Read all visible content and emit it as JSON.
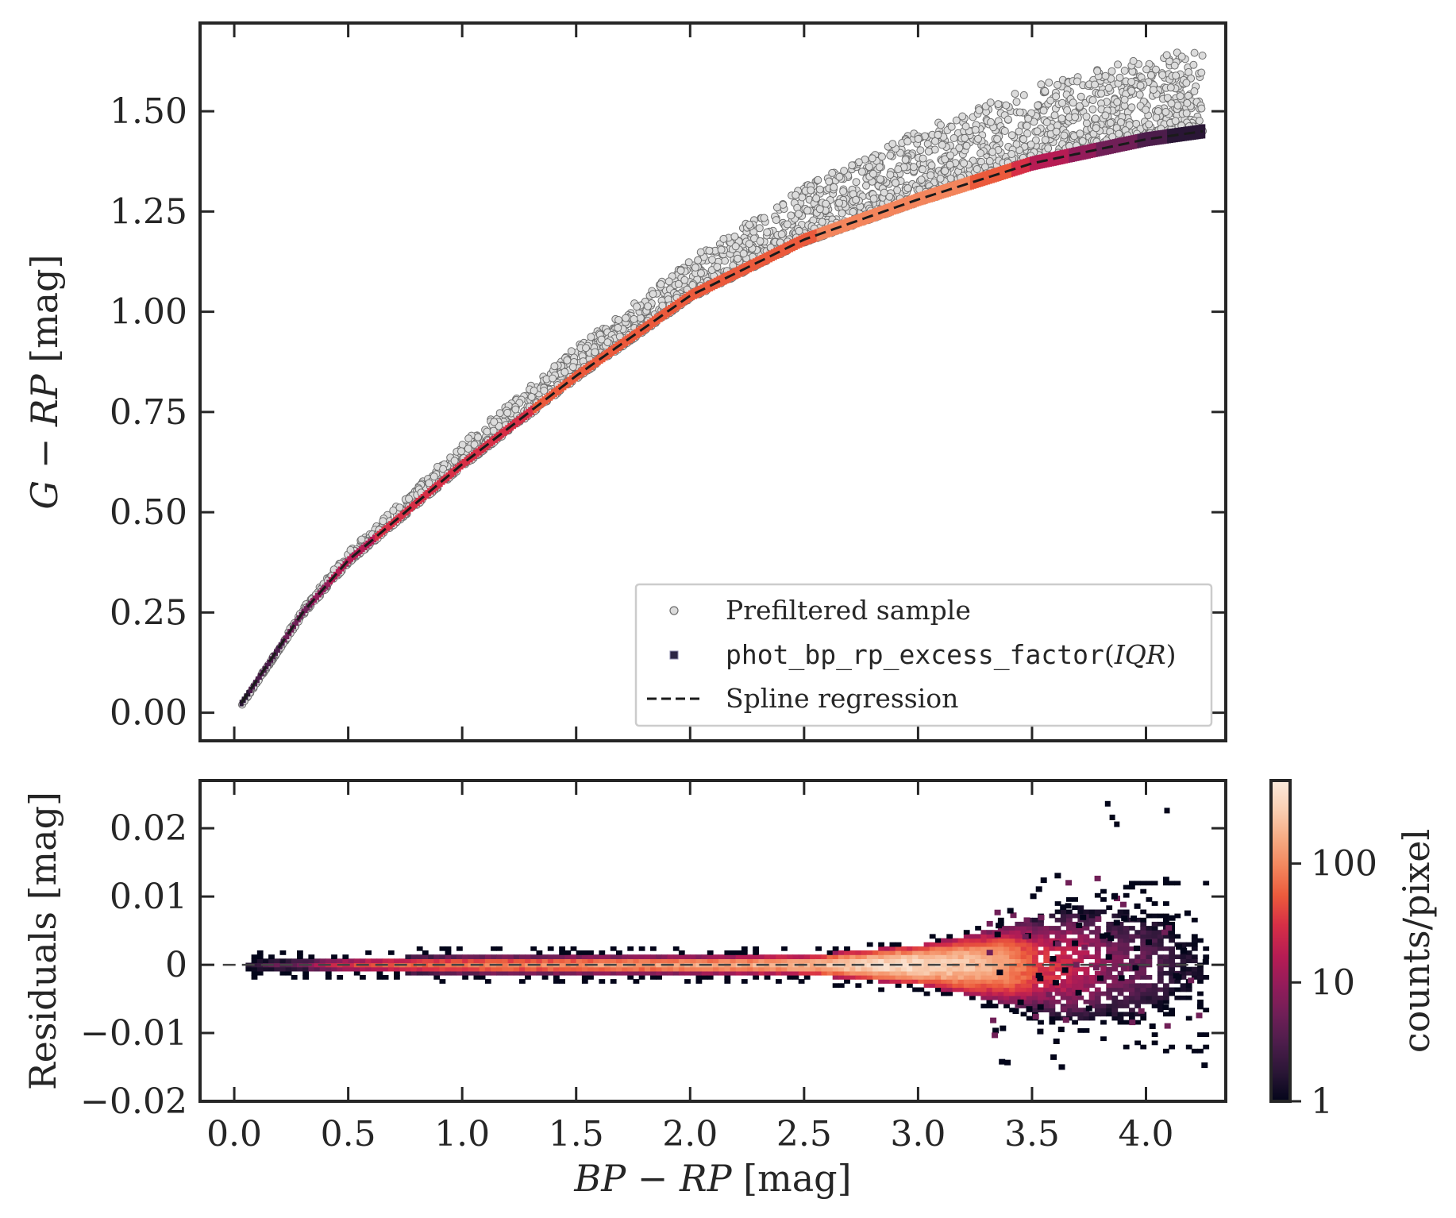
{
  "colors": {
    "prefiltered_fill": "#dcdcdc",
    "prefiltered_edge": "#6e6e6e",
    "spline": "#1a1a1a",
    "axes": "#262626",
    "legend_border": "#cccccc",
    "colormap_rocket": [
      "#03051a",
      "#2a1636",
      "#4c1d4b",
      "#701f57",
      "#931c5a",
      "#b61c54",
      "#d72f46",
      "#eb5a3c",
      "#f3855c",
      "#f6ab84",
      "#f9cfb3",
      "#faebdd"
    ]
  },
  "chart_data": [
    {
      "id": "top",
      "type": "scatter",
      "xlim": [
        -0.15,
        4.35
      ],
      "ylim": [
        -0.07,
        1.72
      ],
      "ylabel": {
        "var1": "G",
        "op": "−",
        "var2": "RP",
        "unit": " [mag]"
      },
      "yticks": [
        0.0,
        0.25,
        0.5,
        0.75,
        1.0,
        1.25,
        1.5
      ],
      "ytick_labels": [
        "0.00",
        "0.25",
        "0.50",
        "0.75",
        "1.00",
        "1.25",
        "1.50"
      ],
      "xticks": [
        0.0,
        0.5,
        1.0,
        1.5,
        2.0,
        2.5,
        3.0,
        3.5,
        4.0
      ],
      "spline_knots": {
        "x": [
          0.0,
          0.05,
          0.3,
          0.5,
          1.0,
          1.5,
          2.0,
          2.5,
          3.0,
          3.5,
          4.0,
          4.25
        ],
        "y": [
          0.0,
          0.04,
          0.25,
          0.38,
          0.62,
          0.84,
          1.04,
          1.18,
          1.28,
          1.37,
          1.43,
          1.45
        ]
      },
      "x_range": [
        0.03,
        4.25
      ],
      "scatter_offset_max": [
        0.0,
        0.06,
        0.1,
        0.14,
        0.18,
        0.2,
        0.22
      ],
      "scatter_offset_max_x": [
        0.0,
        1.0,
        2.0,
        2.5,
        3.0,
        3.5,
        4.25
      ],
      "legend": {
        "position": "lower-right",
        "entries": [
          {
            "label": "Prefiltered sample",
            "marker": "circle"
          },
          {
            "label_mono": "phot_bp_rp_excess_factor",
            "label_paren_open": "(",
            "label_italic": "IQR",
            "label_paren_close": ")",
            "marker": "square"
          },
          {
            "label": "Spline regression",
            "marker": "dashed-line"
          }
        ]
      }
    },
    {
      "id": "bottom",
      "type": "heatmap",
      "xlim": [
        -0.15,
        4.35
      ],
      "ylim": [
        -0.02,
        0.027
      ],
      "ylabel": "Residuals [mag]",
      "yticks": [
        -0.02,
        -0.01,
        0.0,
        0.01,
        0.02
      ],
      "ytick_labels": [
        "−0.02",
        "−0.01",
        "0",
        "0.01",
        "0.02"
      ],
      "xticks": [
        0.0,
        0.5,
        1.0,
        1.5,
        2.0,
        2.5,
        3.0,
        3.5,
        4.0
      ],
      "xtick_labels": [
        "0.0",
        "0.5",
        "1.0",
        "1.5",
        "2.0",
        "2.5",
        "3.0",
        "3.5",
        "4.0"
      ],
      "xlabel": {
        "var1": "BP",
        "op": "−",
        "var2": "RP",
        "unit": " [mag]"
      },
      "zero_line": 0.0,
      "x_range": [
        0.05,
        4.25
      ],
      "band_halfwidth": {
        "x": [
          0.05,
          0.5,
          1.0,
          2.0,
          2.5,
          3.0,
          3.3,
          3.6,
          3.9,
          4.25
        ],
        "y": [
          0.0012,
          0.0011,
          0.0013,
          0.0013,
          0.0015,
          0.003,
          0.005,
          0.008,
          0.011,
          0.012
        ]
      },
      "peak_counts": {
        "x": [
          0.05,
          0.3,
          0.7,
          1.5,
          2.5,
          2.9,
          3.2,
          3.5,
          3.8,
          4.1,
          4.25
        ],
        "y": [
          2,
          6,
          60,
          120,
          200,
          400,
          250,
          40,
          8,
          2,
          1
        ]
      },
      "colorbar": {
        "label": "counts/pixel",
        "scale": "log",
        "range": [
          1,
          500
        ],
        "ticks": [
          1,
          10,
          100
        ],
        "tick_labels": [
          "1",
          "10",
          "100"
        ]
      }
    }
  ]
}
